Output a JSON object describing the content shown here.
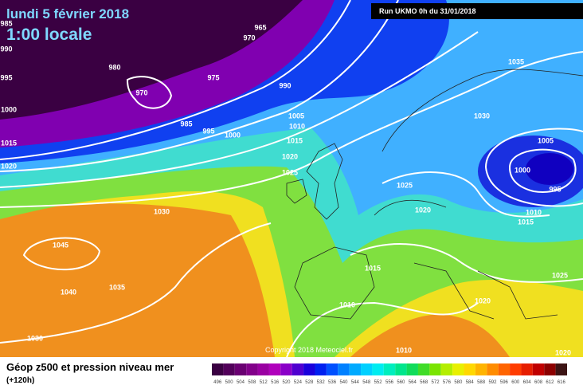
{
  "header": {
    "date": "lundi 5 février 2018",
    "time": "1:00 locale",
    "run": "Run UKMO 0h du 31/01/2018"
  },
  "map": {
    "isobar_labels": [
      985,
      990,
      995,
      1000,
      1015,
      1020,
      965,
      970,
      980,
      970,
      975,
      990,
      985,
      995,
      1000,
      1005,
      1010,
      1015,
      1020,
      1025,
      1030,
      1035,
      1030,
      1005,
      1000,
      995,
      1010,
      1015,
      1025,
      1020,
      1045,
      1040,
      1035,
      1015,
      1010,
      1020,
      1025,
      1030,
      1010,
      1020
    ]
  },
  "footer": {
    "copyright": "Copyright 2018 Meteociel.fr",
    "title": "Géop z500 et pression niveau mer",
    "subtitle": "(+120h)"
  },
  "legend": {
    "labels": [
      496,
      500,
      504,
      508,
      512,
      516,
      520,
      524,
      528,
      532,
      536,
      540,
      544,
      548,
      552,
      556,
      560,
      564,
      568,
      572,
      576,
      580,
      584,
      588,
      592,
      596,
      600,
      604,
      608,
      612,
      616
    ],
    "colors": [
      "#3a0042",
      "#52005a",
      "#6a0072",
      "#82008a",
      "#9a00a2",
      "#b000bc",
      "#8a00c8",
      "#5000d0",
      "#1a00dc",
      "#0020f0",
      "#0050ff",
      "#0080ff",
      "#00aaff",
      "#00d0ff",
      "#00ecf0",
      "#00eebe",
      "#00e68c",
      "#10dc5a",
      "#40dc28",
      "#7ae400",
      "#b4ee00",
      "#e8f000",
      "#ffd800",
      "#ffb400",
      "#ff8c00",
      "#ff6400",
      "#ff3c00",
      "#e61e00",
      "#c00000",
      "#8c0000",
      "#3c1414"
    ]
  }
}
